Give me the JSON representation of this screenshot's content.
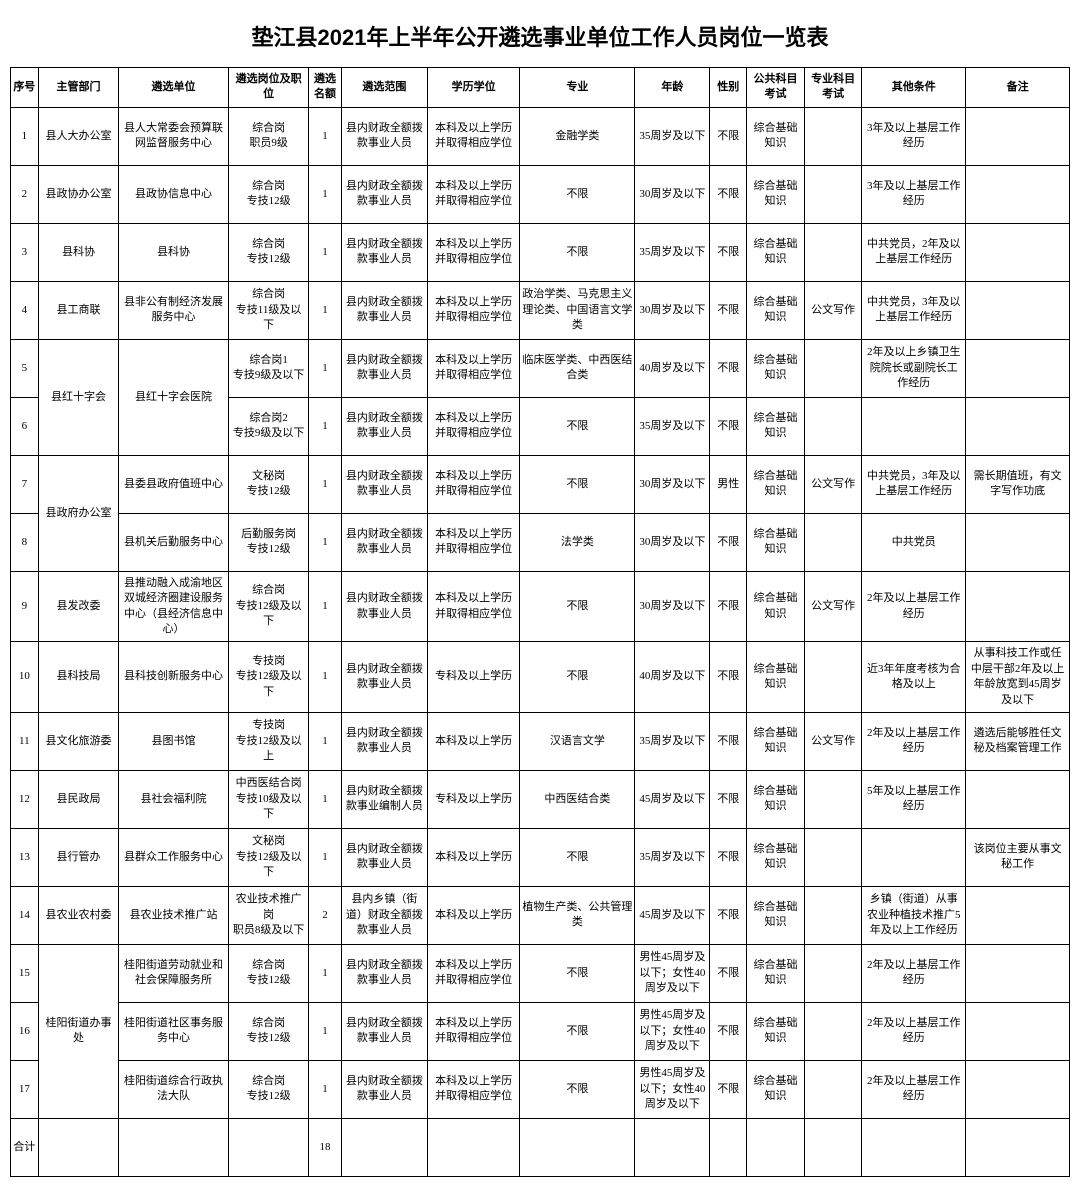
{
  "title": "垫江县2021年上半年公开遴选事业单位工作人员岗位一览表",
  "headers": {
    "idx": "序号",
    "dept": "主管部门",
    "unit": "遴选单位",
    "pos": "遴选岗位及职位",
    "qty": "遴选名额",
    "scope": "遴选范围",
    "edu": "学历学位",
    "major": "专业",
    "age": "年龄",
    "gender": "性别",
    "exam1": "公共科目考试",
    "exam2": "专业科目考试",
    "other": "其他条件",
    "remark": "备注"
  },
  "rows": [
    {
      "idx": "1",
      "dept": "县人大办公室",
      "unit": "县人大常委会预算联网监督服务中心",
      "pos": "综合岗\n职员9级",
      "qty": "1",
      "scope": "县内财政全额拨款事业人员",
      "edu": "本科及以上学历并取得相应学位",
      "major": "金融学类",
      "age": "35周岁及以下",
      "gender": "不限",
      "exam1": "综合基础知识",
      "exam2": "",
      "other": "3年及以上基层工作经历",
      "remark": ""
    },
    {
      "idx": "2",
      "dept": "县政协办公室",
      "unit": "县政协信息中心",
      "pos": "综合岗\n专技12级",
      "qty": "1",
      "scope": "县内财政全额拨款事业人员",
      "edu": "本科及以上学历并取得相应学位",
      "major": "不限",
      "age": "30周岁及以下",
      "gender": "不限",
      "exam1": "综合基础知识",
      "exam2": "",
      "other": "3年及以上基层工作经历",
      "remark": ""
    },
    {
      "idx": "3",
      "dept": "县科协",
      "unit": "县科协",
      "pos": "综合岗\n专技12级",
      "qty": "1",
      "scope": "县内财政全额拨款事业人员",
      "edu": "本科及以上学历并取得相应学位",
      "major": "不限",
      "age": "35周岁及以下",
      "gender": "不限",
      "exam1": "综合基础知识",
      "exam2": "",
      "other": "中共党员，2年及以上基层工作经历",
      "remark": ""
    },
    {
      "idx": "4",
      "dept": "县工商联",
      "unit": "县非公有制经济发展服务中心",
      "pos": "综合岗\n专技11级及以下",
      "qty": "1",
      "scope": "县内财政全额拨款事业人员",
      "edu": "本科及以上学历并取得相应学位",
      "major": "政治学类、马克思主义理论类、中国语言文学类",
      "age": "30周岁及以下",
      "gender": "不限",
      "exam1": "综合基础知识",
      "exam2": "公文写作",
      "other": "中共党员，3年及以上基层工作经历",
      "remark": ""
    },
    {
      "idx": "5",
      "dept": "县红十字会",
      "unit": "县红十字会医院",
      "pos": "综合岗1\n专技9级及以下",
      "qty": "1",
      "scope": "县内财政全额拨款事业人员",
      "edu": "本科及以上学历并取得相应学位",
      "major": "临床医学类、中西医结合类",
      "age": "40周岁及以下",
      "gender": "不限",
      "exam1": "综合基础知识",
      "exam2": "",
      "other": "2年及以上乡镇卫生院院长或副院长工作经历",
      "remark": ""
    },
    {
      "idx": "6",
      "dept": "",
      "unit": "",
      "pos": "综合岗2\n专技9级及以下",
      "qty": "1",
      "scope": "县内财政全额拨款事业人员",
      "edu": "本科及以上学历并取得相应学位",
      "major": "不限",
      "age": "35周岁及以下",
      "gender": "不限",
      "exam1": "综合基础知识",
      "exam2": "",
      "other": "",
      "remark": ""
    },
    {
      "idx": "7",
      "dept": "县政府办公室",
      "unit": "县委县政府值班中心",
      "pos": "文秘岗\n专技12级",
      "qty": "1",
      "scope": "县内财政全额拨款事业人员",
      "edu": "本科及以上学历并取得相应学位",
      "major": "不限",
      "age": "30周岁及以下",
      "gender": "男性",
      "exam1": "综合基础知识",
      "exam2": "公文写作",
      "other": "中共党员，3年及以上基层工作经历",
      "remark": "需长期值班，有文字写作功底"
    },
    {
      "idx": "8",
      "dept": "",
      "unit": "县机关后勤服务中心",
      "pos": "后勤服务岗\n专技12级",
      "qty": "1",
      "scope": "县内财政全额拨款事业人员",
      "edu": "本科及以上学历并取得相应学位",
      "major": "法学类",
      "age": "30周岁及以下",
      "gender": "不限",
      "exam1": "综合基础知识",
      "exam2": "",
      "other": "中共党员",
      "remark": ""
    },
    {
      "idx": "9",
      "dept": "县发改委",
      "unit": "县推动融入成渝地区双城经济圈建设服务中心（县经济信息中心）",
      "pos": "综合岗\n专技12级及以下",
      "qty": "1",
      "scope": "县内财政全额拨款事业人员",
      "edu": "本科及以上学历并取得相应学位",
      "major": "不限",
      "age": "30周岁及以下",
      "gender": "不限",
      "exam1": "综合基础知识",
      "exam2": "公文写作",
      "other": "2年及以上基层工作经历",
      "remark": ""
    },
    {
      "idx": "10",
      "dept": "县科技局",
      "unit": "县科技创新服务中心",
      "pos": "专技岗\n专技12级及以下",
      "qty": "1",
      "scope": "县内财政全额拨款事业人员",
      "edu": "专科及以上学历",
      "major": "不限",
      "age": "40周岁及以下",
      "gender": "不限",
      "exam1": "综合基础知识",
      "exam2": "",
      "other": "近3年年度考核为合格及以上",
      "remark": "从事科技工作或任中层干部2年及以上年龄放宽到45周岁及以下"
    },
    {
      "idx": "11",
      "dept": "县文化旅游委",
      "unit": "县图书馆",
      "pos": "专技岗\n专技12级及以上",
      "qty": "1",
      "scope": "县内财政全额拨款事业人员",
      "edu": "本科及以上学历",
      "major": "汉语言文学",
      "age": "35周岁及以下",
      "gender": "不限",
      "exam1": "综合基础知识",
      "exam2": "公文写作",
      "other": "2年及以上基层工作经历",
      "remark": "遴选后能够胜任文秘及档案管理工作"
    },
    {
      "idx": "12",
      "dept": "县民政局",
      "unit": "县社会福利院",
      "pos": "中西医结合岗\n专技10级及以下",
      "qty": "1",
      "scope": "县内财政全额拨款事业编制人员",
      "edu": "专科及以上学历",
      "major": "中西医结合类",
      "age": "45周岁及以下",
      "gender": "不限",
      "exam1": "综合基础知识",
      "exam2": "",
      "other": "5年及以上基层工作经历",
      "remark": ""
    },
    {
      "idx": "13",
      "dept": "县行管办",
      "unit": "县群众工作服务中心",
      "pos": "文秘岗\n专技12级及以下",
      "qty": "1",
      "scope": "县内财政全额拨款事业人员",
      "edu": "本科及以上学历",
      "major": "不限",
      "age": "35周岁及以下",
      "gender": "不限",
      "exam1": "综合基础知识",
      "exam2": "",
      "other": "",
      "remark": "该岗位主要从事文秘工作"
    },
    {
      "idx": "14",
      "dept": "县农业农村委",
      "unit": "县农业技术推广站",
      "pos": "农业技术推广岗\n职员8级及以下",
      "qty": "2",
      "scope": "县内乡镇（街道）财政全额拨款事业人员",
      "edu": "本科及以上学历",
      "major": "植物生产类、公共管理类",
      "age": "45周岁及以下",
      "gender": "不限",
      "exam1": "综合基础知识",
      "exam2": "",
      "other": "乡镇（街道）从事农业种植技术推广5年及以上工作经历",
      "remark": ""
    },
    {
      "idx": "15",
      "dept": "桂阳街道办事处",
      "unit": "桂阳街道劳动就业和社会保障服务所",
      "pos": "综合岗\n专技12级",
      "qty": "1",
      "scope": "县内财政全额拨款事业人员",
      "edu": "本科及以上学历并取得相应学位",
      "major": "不限",
      "age": "男性45周岁及以下；女性40周岁及以下",
      "gender": "不限",
      "exam1": "综合基础知识",
      "exam2": "",
      "other": "2年及以上基层工作经历",
      "remark": ""
    },
    {
      "idx": "16",
      "dept": "",
      "unit": "桂阳街道社区事务服务中心",
      "pos": "综合岗\n专技12级",
      "qty": "1",
      "scope": "县内财政全额拨款事业人员",
      "edu": "本科及以上学历并取得相应学位",
      "major": "不限",
      "age": "男性45周岁及以下；女性40周岁及以下",
      "gender": "不限",
      "exam1": "综合基础知识",
      "exam2": "",
      "other": "2年及以上基层工作经历",
      "remark": ""
    },
    {
      "idx": "17",
      "dept": "",
      "unit": "桂阳街道综合行政执法大队",
      "pos": "综合岗\n专技12级",
      "qty": "1",
      "scope": "县内财政全额拨款事业人员",
      "edu": "本科及以上学历并取得相应学位",
      "major": "不限",
      "age": "男性45周岁及以下；女性40周岁及以下",
      "gender": "不限",
      "exam1": "综合基础知识",
      "exam2": "",
      "other": "2年及以上基层工作经历",
      "remark": ""
    }
  ],
  "total": {
    "label": "合计",
    "qty": "18"
  }
}
